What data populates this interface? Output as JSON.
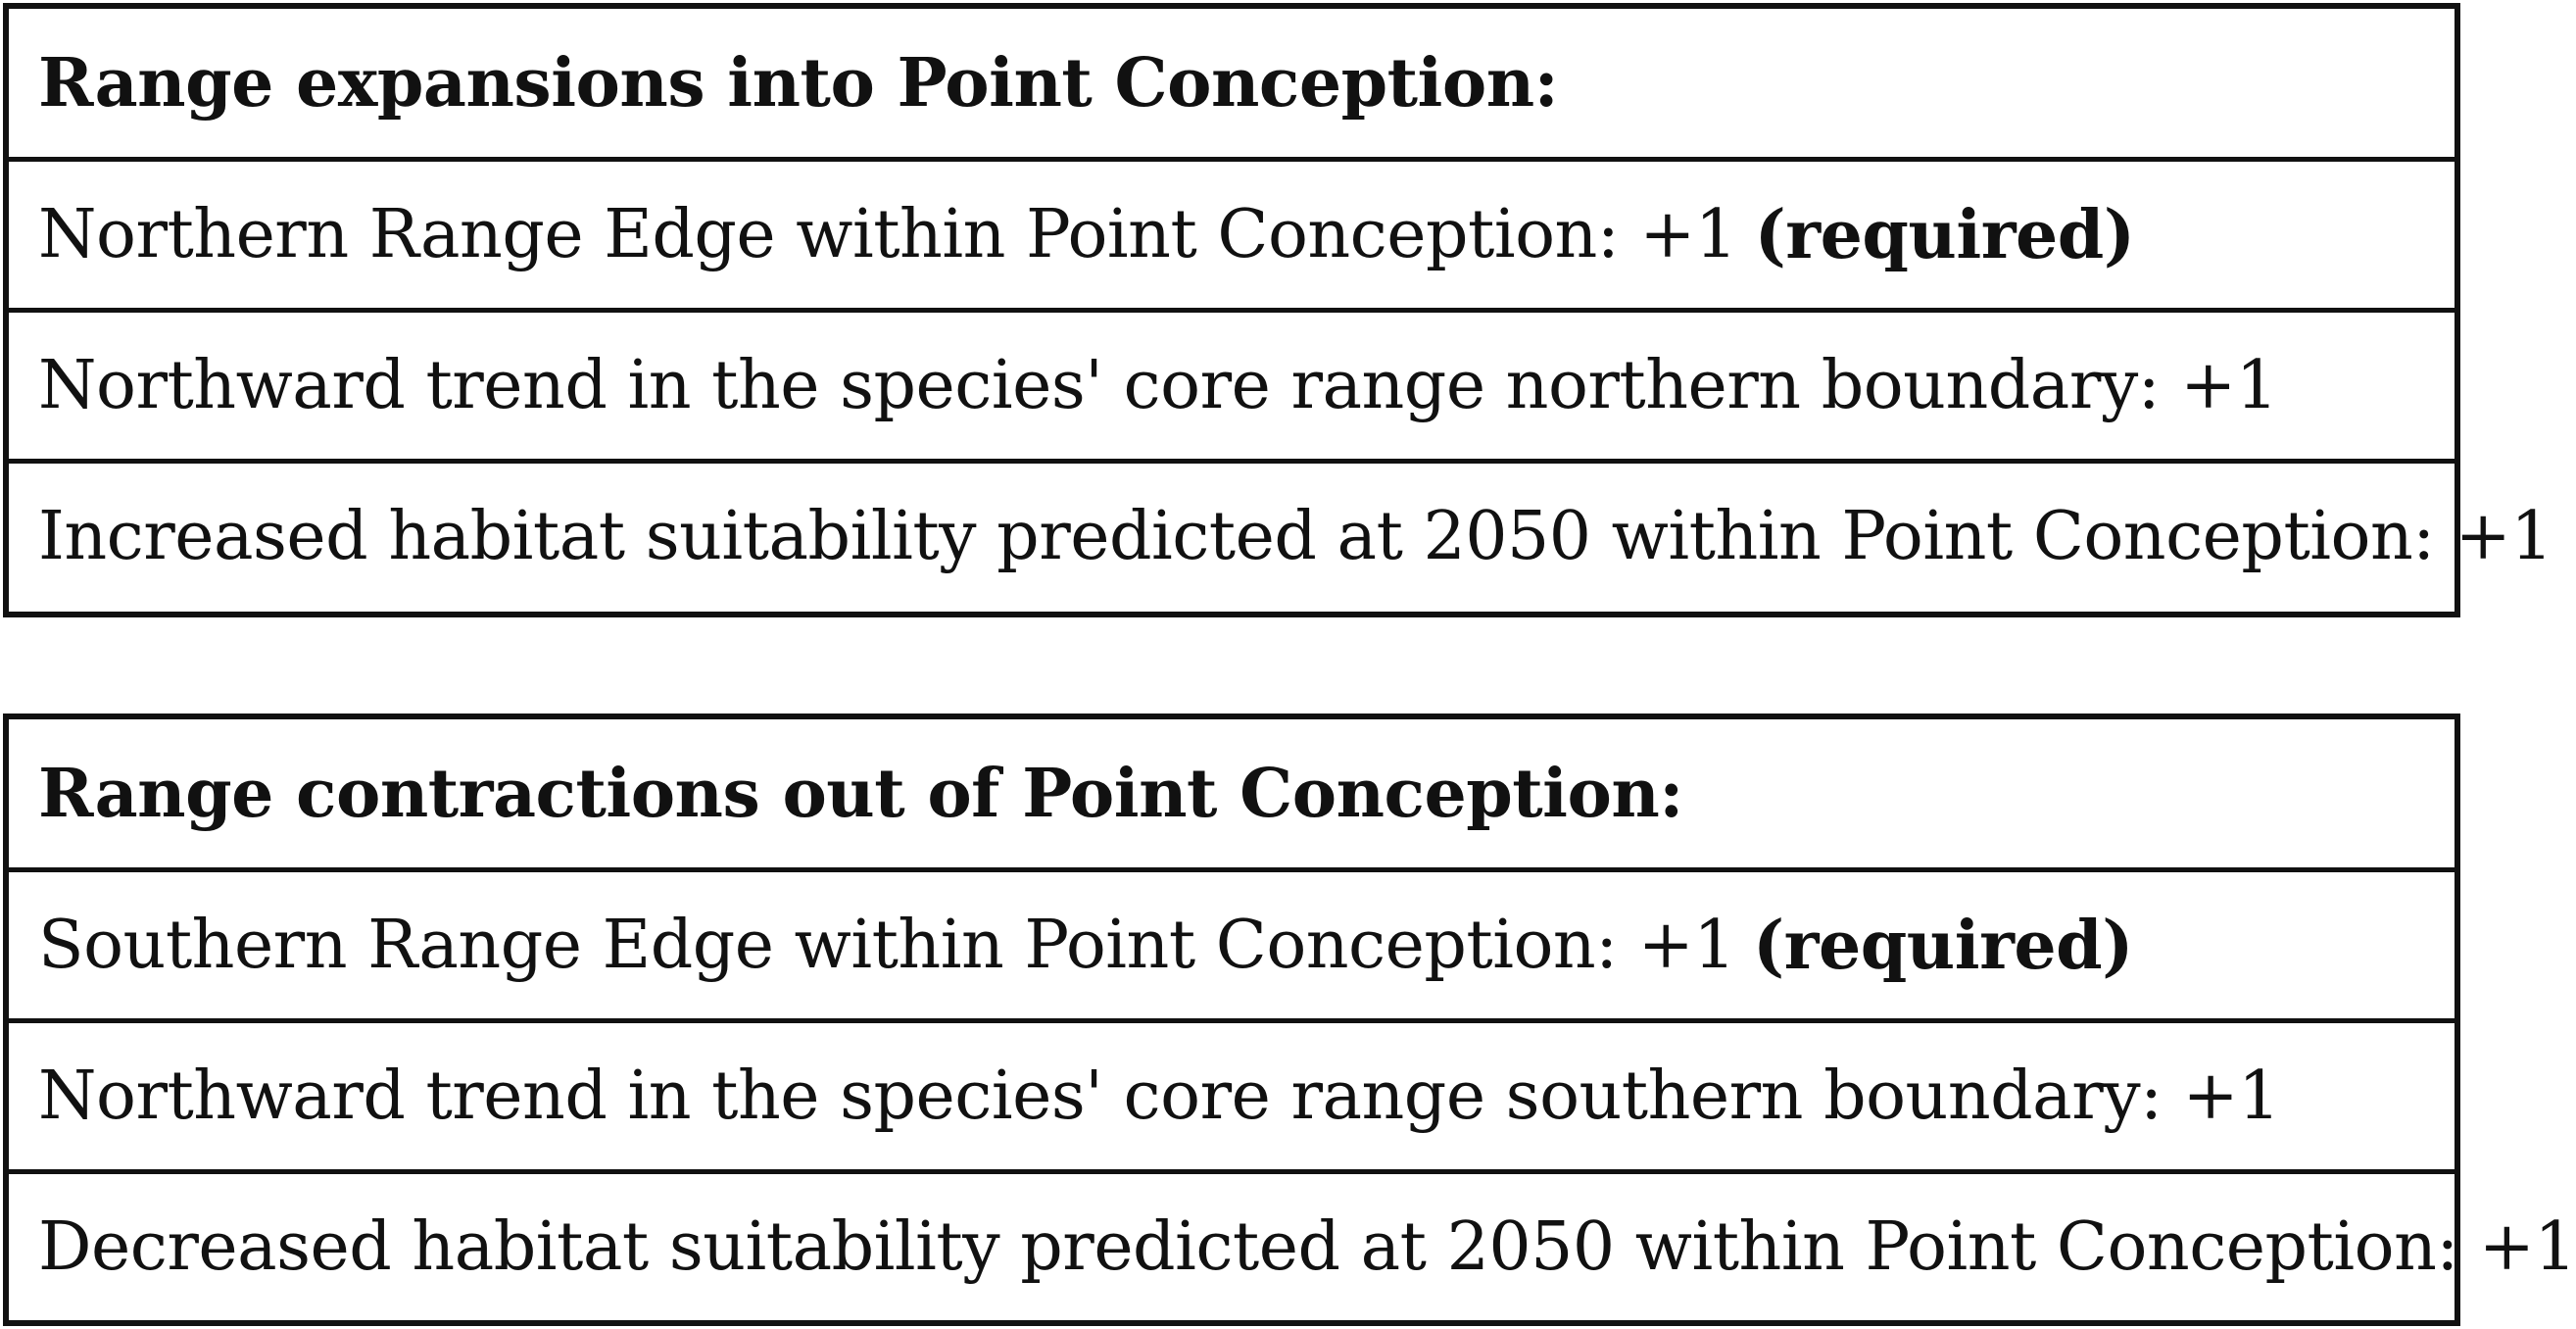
{
  "expansions": {
    "heading": "Range expansions into Point Conception:",
    "rows": [
      {
        "text": "Northern Range Edge within Point Conception: +1",
        "note": "(required)"
      },
      {
        "text": "Northward trend in the species' core range northern boundary: +1"
      },
      {
        "text": "Increased habitat suitability predicted at 2050 within Point Conception: +1"
      }
    ]
  },
  "contractions": {
    "heading": "Range contractions out of Point Conception:",
    "rows": [
      {
        "text": "Southern Range Edge within Point Conception: +1",
        "note": "(required)"
      },
      {
        "text": "Northward trend in the species' core range southern boundary: +1"
      },
      {
        "text": "Decreased habitat suitability predicted at 2050 within Point Conception: +1"
      }
    ]
  }
}
